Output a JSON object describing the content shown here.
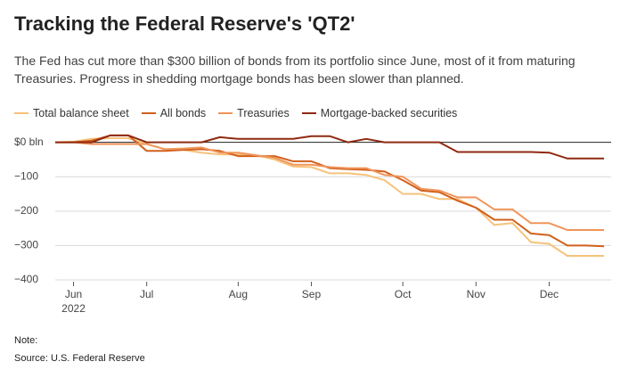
{
  "chart_data": {
    "type": "line",
    "title": "Tracking the Federal Reserve's 'QT2'",
    "subtitle": "The Fed has cut more than $300 billion of bonds from its portfolio since June, most of it from maturing Treasuries. Progress in shedding mortgage bonds has been slower than planned.",
    "note": "Note:",
    "source": "Source: U.S. Federal Reserve",
    "categories": [
      null,
      "Jun 2022",
      null,
      null,
      null,
      "Jul",
      null,
      null,
      null,
      null,
      "Aug",
      null,
      null,
      null,
      "Sep",
      null,
      null,
      null,
      null,
      "Oct",
      null,
      null,
      null,
      "Nov",
      null,
      null,
      null,
      "Dec",
      null,
      null,
      null
    ],
    "series": [
      {
        "name": "Total balance sheet",
        "color": "#f6c27a",
        "values": [
          0,
          2,
          10,
          12,
          12,
          -5,
          -20,
          -22,
          -30,
          -35,
          -35,
          -38,
          -50,
          -70,
          -72,
          -90,
          -90,
          -95,
          -110,
          -150,
          -150,
          -165,
          -165,
          -190,
          -240,
          -235,
          -290,
          -295,
          -330,
          -330,
          -330
        ]
      },
      {
        "name": "All bonds",
        "color": "#d0601c",
        "values": [
          0,
          0,
          5,
          20,
          20,
          -25,
          -25,
          -22,
          -20,
          -25,
          -40,
          -40,
          -40,
          -55,
          -55,
          -75,
          -78,
          -80,
          -85,
          -110,
          -140,
          -145,
          -170,
          -190,
          -225,
          -225,
          -265,
          -270,
          -300,
          -300,
          -302
        ]
      },
      {
        "name": "Treasuries",
        "color": "#f0955a",
        "values": [
          0,
          0,
          -5,
          -5,
          -5,
          -5,
          -20,
          -18,
          -15,
          -30,
          -30,
          -38,
          -45,
          -65,
          -65,
          -72,
          -75,
          -75,
          -95,
          -100,
          -135,
          -140,
          -160,
          -160,
          -195,
          -195,
          -235,
          -235,
          -255,
          -255,
          -255
        ]
      },
      {
        "name": "Mortgage-backed securities",
        "color": "#8f2a12",
        "values": [
          0,
          0,
          0,
          20,
          20,
          0,
          0,
          0,
          0,
          15,
          10,
          10,
          10,
          10,
          18,
          18,
          0,
          10,
          0,
          0,
          0,
          0,
          -28,
          -28,
          -28,
          -28,
          -28,
          -30,
          -47,
          -47,
          -47
        ]
      }
    ],
    "ylim": [
      -400,
      25
    ],
    "yticks": [
      {
        "value": 0,
        "label": "$0 bln"
      },
      {
        "value": -100,
        "label": "−100"
      },
      {
        "value": -200,
        "label": "−200"
      },
      {
        "value": -300,
        "label": "−300"
      },
      {
        "value": -400,
        "label": "−400"
      }
    ],
    "grid": true
  }
}
